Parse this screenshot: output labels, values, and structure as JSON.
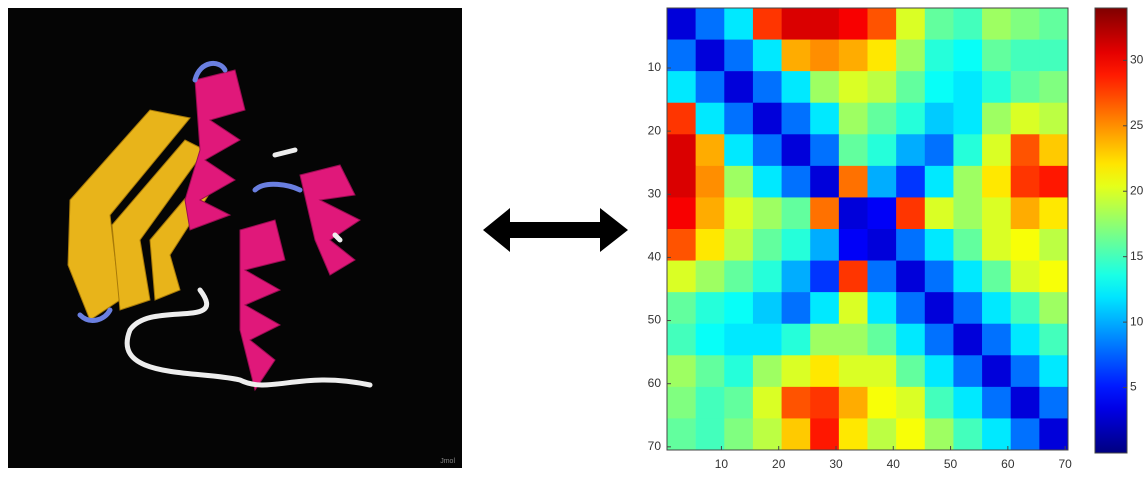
{
  "chart_data": {
    "type": "heatmap",
    "watermark": "Jmol",
    "x": [
      3,
      8,
      13,
      18,
      23,
      28,
      33,
      38,
      43,
      48,
      53,
      58,
      63,
      68
    ],
    "y": [
      3,
      8,
      13,
      18,
      23,
      28,
      33,
      38,
      43,
      48,
      53,
      58,
      63,
      68
    ],
    "xlim": [
      0.5,
      70.5
    ],
    "ylim": [
      0.5,
      70.5
    ],
    "y_inverted": true,
    "xticks": [
      10,
      20,
      30,
      40,
      50,
      60,
      70
    ],
    "yticks": [
      10,
      20,
      30,
      40,
      50,
      60,
      70
    ],
    "colormap": "jet",
    "clim": [
      0,
      34
    ],
    "cticks": [
      5,
      10,
      15,
      20,
      25,
      30
    ],
    "values": [
      [
        3,
        8,
        12,
        28,
        31,
        31,
        30,
        27,
        20,
        16,
        15,
        18,
        17,
        16
      ],
      [
        8,
        3,
        8,
        12,
        24,
        25,
        24,
        22,
        18,
        14,
        13,
        16,
        15,
        15
      ],
      [
        12,
        8,
        3,
        8,
        12,
        18,
        20,
        19,
        16,
        13,
        12,
        14,
        16,
        17
      ],
      [
        28,
        12,
        8,
        3,
        8,
        12,
        18,
        16,
        14,
        11,
        12,
        18,
        20,
        19
      ],
      [
        31,
        24,
        12,
        8,
        3,
        8,
        16,
        14,
        10,
        8,
        14,
        20,
        27,
        23
      ],
      [
        31,
        25,
        18,
        12,
        8,
        3,
        26,
        10,
        6,
        12,
        18,
        22,
        28,
        29
      ],
      [
        30,
        24,
        20,
        18,
        16,
        26,
        3,
        4,
        28,
        20,
        18,
        20,
        24,
        22
      ],
      [
        27,
        22,
        19,
        16,
        14,
        10,
        4,
        3,
        8,
        12,
        16,
        20,
        21,
        19
      ],
      [
        20,
        18,
        16,
        14,
        10,
        6,
        28,
        8,
        3,
        8,
        12,
        16,
        20,
        21
      ],
      [
        16,
        14,
        13,
        11,
        8,
        12,
        20,
        12,
        8,
        3,
        8,
        12,
        15,
        18
      ],
      [
        15,
        13,
        12,
        12,
        14,
        18,
        18,
        16,
        12,
        8,
        3,
        8,
        12,
        15
      ],
      [
        18,
        16,
        14,
        18,
        20,
        22,
        20,
        20,
        16,
        12,
        8,
        3,
        8,
        12
      ],
      [
        17,
        15,
        16,
        20,
        27,
        28,
        24,
        21,
        20,
        15,
        12,
        8,
        3,
        8
      ],
      [
        16,
        15,
        17,
        19,
        23,
        29,
        22,
        19,
        21,
        18,
        15,
        12,
        8,
        3
      ]
    ]
  }
}
